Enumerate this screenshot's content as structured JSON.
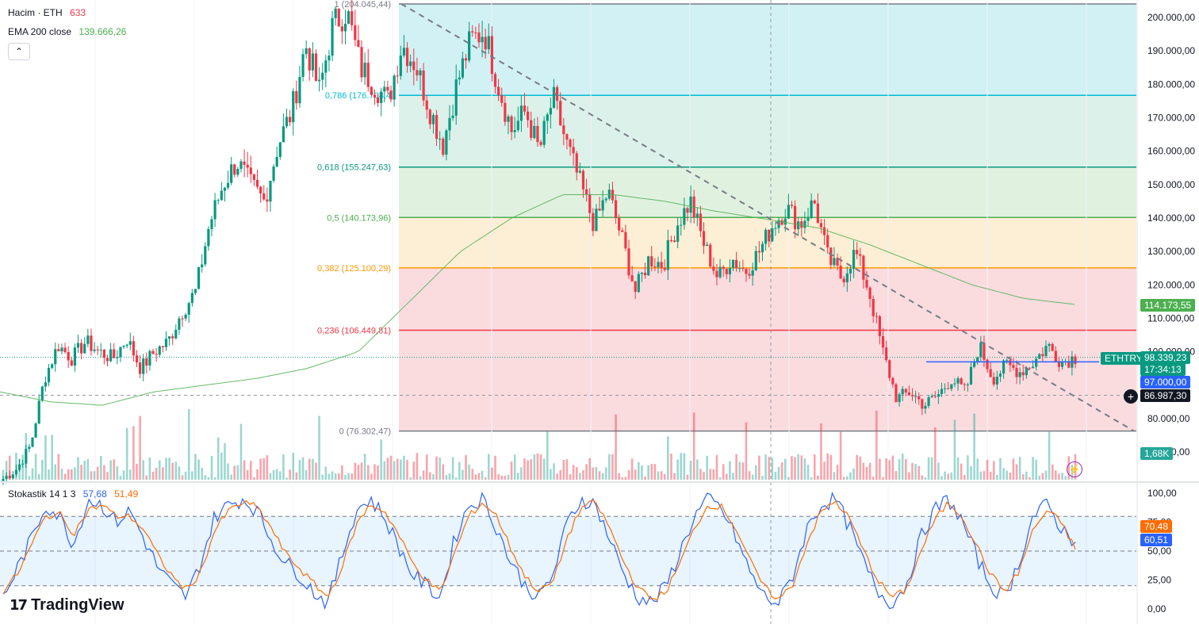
{
  "legend": {
    "volume_label": "Hacim · ETH",
    "volume_value": "633",
    "ema_label": "EMA 200 close",
    "ema_value": "139.666,26",
    "stoch_label": "Stokastik 14 1 3",
    "stoch_k": "57,68",
    "stoch_d": "51,49",
    "collapse": "⌃"
  },
  "brand": {
    "name": "TradingView",
    "logo": "tradingview-logo"
  },
  "fib_levels": [
    {
      "label": "1 (204.045,44)",
      "price": 204045.44,
      "line_color": "#787b86",
      "fill": "#e0e0e0"
    },
    {
      "label": "0,786 (176.708,4",
      "price": 176708.4,
      "line_color": "#00bcd4",
      "fill": "#c9eef2"
    },
    {
      "label": "0,618 (155.247,63)",
      "price": 155247.63,
      "line_color": "#089981",
      "fill": "#d6eee6"
    },
    {
      "label": "0,5 (140.173,96)",
      "price": 140173.96,
      "line_color": "#4caf50",
      "fill": "#dcefdb"
    },
    {
      "label": "0,382 (125.100,29)",
      "price": 125100.29,
      "line_color": "#ff9800",
      "fill": "#fdebcf"
    },
    {
      "label": "0,236 (106.449,81)",
      "price": 106449.81,
      "line_color": "#f23645",
      "fill": "#f9d6d9"
    },
    {
      "label": "0 (76.302,47)",
      "price": 76302.47,
      "line_color": "#787b86",
      "fill": "#f9d6d9"
    }
  ],
  "price_axis": {
    "ticks": [
      "200.000,00",
      "190.000,00",
      "180.000,00",
      "170.000,00",
      "160.000,00",
      "150.000,00",
      "140.000,00",
      "130.000,00",
      "120.000,00",
      "110.000,00",
      "100.000,00",
      "80.000,00",
      "70.000,00"
    ],
    "tick_values": [
      200000,
      190000,
      180000,
      170000,
      160000,
      150000,
      140000,
      130000,
      120000,
      110000,
      100000,
      80000,
      70000
    ]
  },
  "stoch_axis": {
    "ticks": [
      "100,00",
      "75,00",
      "50,00",
      "25,00",
      "0,00"
    ],
    "tick_values": [
      100,
      75,
      50,
      25,
      0
    ]
  },
  "tags": {
    "ema": {
      "text": "114.173,55",
      "price": 114173.55,
      "color": "#4caf50"
    },
    "symbol": {
      "text": "ETHTRY",
      "color": "#089981"
    },
    "last_price": {
      "text": "98.339,23",
      "price": 98339.23,
      "color": "#089981"
    },
    "countdown": {
      "text": "17:34:13",
      "color": "#089981"
    },
    "horizontal": {
      "text": "97.000,00",
      "price": 97000,
      "color": "#2962ff"
    },
    "crosshair": {
      "text": "86.987,30",
      "price": 86987.3,
      "color": "#131722"
    },
    "volume": {
      "text": "1,68K",
      "color": "#26a69a"
    },
    "stoch_d": {
      "text": "70,48",
      "value": 70.48,
      "color": "#ff6d00"
    },
    "stoch_k": {
      "text": "60,51",
      "value": 60.51,
      "color": "#2962ff"
    }
  },
  "chart_data": {
    "type": "candlestick",
    "symbol": "ETHTRY",
    "price_range": [
      70000,
      204045.44
    ],
    "trend_line": {
      "from": 204045.44,
      "to": 76302.47,
      "style": "dashed"
    },
    "horizontal_line_price": 97000,
    "key_path_prices": [
      62000,
      65000,
      72000,
      92000,
      102000,
      98000,
      103000,
      100000,
      98000,
      104000,
      95000,
      100000,
      103000,
      112000,
      118000,
      138000,
      150000,
      157000,
      150000,
      145000,
      162000,
      172000,
      192000,
      178000,
      198000,
      202000,
      185000,
      180000,
      175000,
      192000,
      186000,
      173000,
      162000,
      180000,
      193000,
      196000,
      180000,
      166000,
      172000,
      160000,
      176000,
      162000,
      150000,
      138000,
      148000,
      134000,
      118000,
      128000,
      126000,
      138000,
      145000,
      132000,
      122000,
      128000,
      124000,
      130000,
      138000,
      143000,
      138000,
      145000,
      128000,
      122000,
      130000,
      118000,
      100000,
      86000,
      88000,
      84000,
      87000,
      92000,
      88000,
      102000,
      92000,
      96000,
      94000,
      97000,
      102000,
      97000,
      98300
    ],
    "ema200_path": [
      88000,
      85000,
      84000,
      88000,
      90000,
      92000,
      95000,
      100000,
      115000,
      130000,
      140000,
      147000,
      147000,
      145000,
      142000,
      139600,
      137000,
      132000,
      126000,
      120000,
      116000,
      114170
    ],
    "volume_max_k": 10,
    "stochastic": {
      "k_period": 14,
      "smooth": 1,
      "d_period": 3,
      "bands": [
        80,
        50,
        20
      ],
      "k_last": 57.68,
      "d_last": 51.49,
      "k_path": [
        10,
        35,
        60,
        90,
        80,
        55,
        95,
        90,
        75,
        85,
        60,
        35,
        20,
        10,
        40,
        80,
        90,
        95,
        85,
        60,
        40,
        30,
        15,
        5,
        45,
        85,
        95,
        80,
        55,
        30,
        20,
        10,
        60,
        90,
        95,
        70,
        40,
        20,
        10,
        30,
        75,
        95,
        90,
        60,
        30,
        10,
        5,
        20,
        50,
        80,
        95,
        85,
        60,
        30,
        10,
        5,
        30,
        70,
        90,
        95,
        70,
        40,
        15,
        5,
        20,
        60,
        85,
        95,
        75,
        45,
        20,
        10,
        40,
        80,
        90,
        70,
        57.68
      ],
      "d_path": [
        15,
        30,
        55,
        80,
        82,
        65,
        85,
        90,
        80,
        80,
        68,
        45,
        28,
        16,
        32,
        68,
        85,
        92,
        88,
        70,
        48,
        35,
        22,
        10,
        35,
        72,
        90,
        85,
        65,
        40,
        25,
        14,
        48,
        80,
        92,
        80,
        52,
        28,
        15,
        24,
        62,
        88,
        92,
        70,
        40,
        18,
        8,
        15,
        40,
        70,
        90,
        88,
        68,
        40,
        18,
        8,
        22,
        58,
        84,
        93,
        78,
        50,
        25,
        10,
        16,
        48,
        76,
        92,
        80,
        55,
        30,
        15,
        32,
        68,
        85,
        75,
        51.49
      ]
    }
  }
}
